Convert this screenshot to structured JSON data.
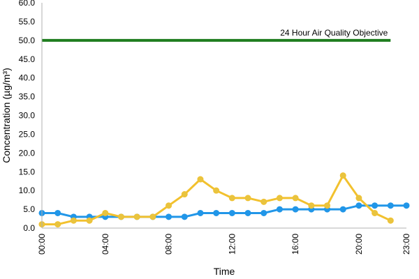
{
  "chart_data": {
    "type": "line",
    "xlabel": "Time",
    "ylabel": "Concentration (µg/m³)",
    "ylim": [
      0,
      60
    ],
    "y_ticks": [
      "0.0",
      "5.0",
      "10.0",
      "15.0",
      "20.0",
      "25.0",
      "30.0",
      "35.0",
      "40.0",
      "45.0",
      "50.0",
      "55.0",
      "60.0"
    ],
    "x_tick_labels": [
      "00:00",
      "04:00",
      "08:00",
      "12:00",
      "16:00",
      "20:00",
      "23:00"
    ],
    "x_tick_hours": [
      0,
      4,
      8,
      12,
      16,
      20,
      23
    ],
    "x": [
      0,
      1,
      2,
      3,
      4,
      5,
      6,
      7,
      8,
      9,
      10,
      11,
      12,
      13,
      14,
      15,
      16,
      17,
      18,
      19,
      20,
      21,
      22,
      23
    ],
    "grid": false,
    "objective": {
      "label": "24 Hour Air Quality Objective",
      "value": 50,
      "x_start": 0,
      "x_end": 22,
      "color": "#1e7d1e"
    },
    "series": [
      {
        "color": "#2196e8",
        "marker_color": "#2196e8",
        "values": [
          4,
          4,
          3,
          3,
          3,
          3,
          3,
          3,
          3,
          3,
          4,
          4,
          4,
          4,
          4,
          5,
          5,
          5,
          5,
          5,
          6,
          6,
          6,
          6
        ]
      },
      {
        "color": "#f2c12e",
        "marker_color": "#e8c440",
        "values": [
          1,
          1,
          2,
          2,
          4,
          3,
          3,
          3,
          6,
          9,
          13,
          10,
          8,
          8,
          7,
          8,
          8,
          6,
          6,
          14,
          8,
          4,
          2,
          null
        ]
      }
    ]
  }
}
